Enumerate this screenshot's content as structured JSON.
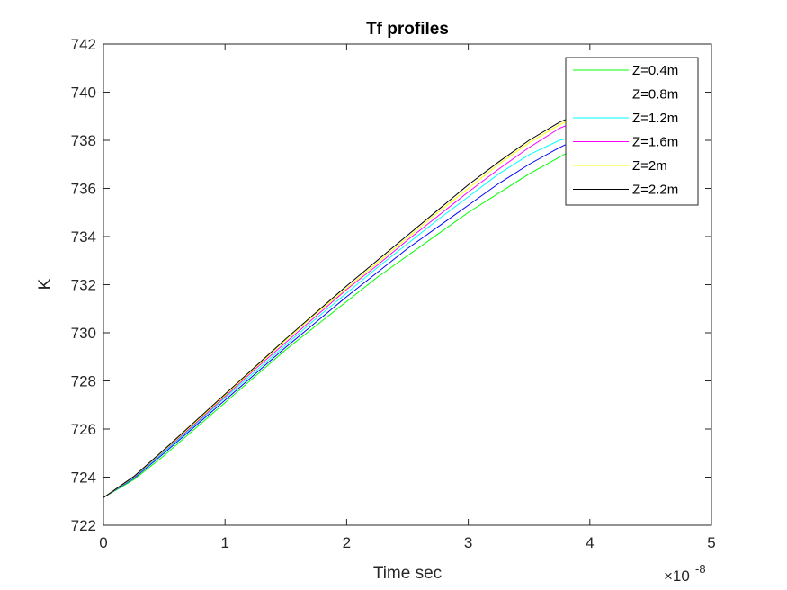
{
  "chart_data": {
    "type": "line",
    "title": "Tf profiles",
    "xlabel": "Time sec",
    "ylabel": "K",
    "x_exponent_label": "×10",
    "x_exponent_power": "-8",
    "x_scale": 1e-08,
    "xlim": [
      0,
      5
    ],
    "ylim": [
      722,
      742
    ],
    "xticks": [
      0,
      1,
      2,
      3,
      4,
      5
    ],
    "yticks": [
      722,
      724,
      726,
      728,
      730,
      732,
      734,
      736,
      738,
      740,
      742
    ],
    "xtick_labels": [
      "0",
      "1",
      "2",
      "3",
      "4",
      "5"
    ],
    "ytick_labels": [
      "722",
      "724",
      "726",
      "728",
      "730",
      "732",
      "734",
      "736",
      "738",
      "740",
      "742"
    ],
    "grid": false,
    "legend_position": "top-right",
    "x": [
      0,
      0.25,
      0.5,
      0.75,
      1.0,
      1.25,
      1.5,
      1.75,
      2.0,
      2.25,
      2.5,
      2.75,
      3.0,
      3.25,
      3.5,
      3.75,
      4.0
    ],
    "series": [
      {
        "name": "Z=0.4m",
        "color": "#00ff00",
        "values": [
          723.15,
          723.9,
          724.9,
          726.0,
          727.1,
          728.2,
          729.3,
          730.3,
          731.3,
          732.3,
          733.2,
          734.1,
          735.0,
          735.8,
          736.6,
          737.3,
          738.0
        ]
      },
      {
        "name": "Z=0.8m",
        "color": "#0000ff",
        "values": [
          723.15,
          723.95,
          725.0,
          726.1,
          727.2,
          728.3,
          729.4,
          730.45,
          731.5,
          732.5,
          733.5,
          734.4,
          735.3,
          736.2,
          737.0,
          737.7,
          738.3
        ]
      },
      {
        "name": "Z=1.2m",
        "color": "#00ffff",
        "values": [
          723.15,
          723.98,
          725.05,
          726.15,
          727.3,
          728.4,
          729.5,
          730.6,
          731.65,
          732.7,
          733.7,
          734.7,
          735.65,
          736.6,
          737.4,
          738.0,
          738.3
        ]
      },
      {
        "name": "Z=1.6m",
        "color": "#ff00ff",
        "values": [
          723.15,
          724.0,
          725.1,
          726.2,
          727.35,
          728.5,
          729.6,
          730.7,
          731.8,
          732.8,
          733.85,
          734.85,
          735.85,
          736.8,
          737.7,
          738.5,
          739.0
        ]
      },
      {
        "name": "Z=2m",
        "color": "#ffff00",
        "values": [
          723.15,
          724.02,
          725.12,
          726.25,
          727.4,
          728.55,
          729.7,
          730.8,
          731.85,
          732.9,
          733.95,
          735.0,
          736.0,
          737.0,
          737.9,
          738.65,
          739.2
        ]
      },
      {
        "name": "Z=2.2m",
        "color": "#000000",
        "values": [
          723.15,
          724.03,
          725.15,
          726.3,
          727.45,
          728.6,
          729.75,
          730.85,
          731.95,
          733.0,
          734.05,
          735.1,
          736.15,
          737.1,
          738.0,
          738.75,
          739.3
        ]
      }
    ]
  }
}
